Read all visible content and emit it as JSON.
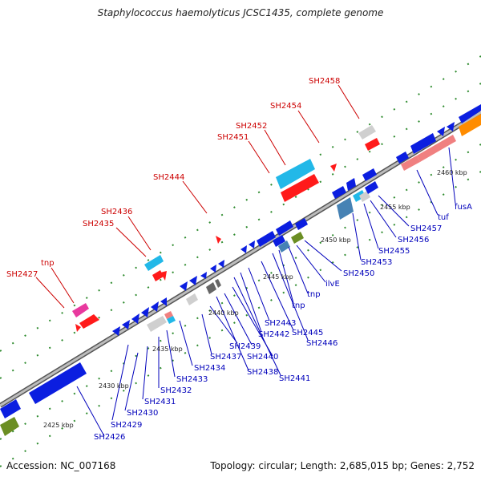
{
  "title": "Staphylococcus haemolyticus JCSC1435, complete genome",
  "footer": {
    "accession": "Accession: NC_007168",
    "topology": "Topology: circular; Length: 2,685,015 bp; Genes: 2,752"
  },
  "colors": {
    "forward_label": "#cc0000",
    "reverse_label": "#0000bb",
    "backbone": "#8a8a8a",
    "dots": "#2e8b2e"
  },
  "scale_ticks": [
    "2425 kbp",
    "2430 kbp",
    "2435 kbp",
    "2440 kbp",
    "2445 kbp",
    "2450 kbp",
    "2455 kbp",
    "2460 kbp"
  ],
  "forward_labels": [
    "SH2427",
    "tnp",
    "SH2435",
    "SH2436",
    "SH2444",
    "SH2451",
    "SH2452",
    "SH2454",
    "SH2458"
  ],
  "reverse_labels": [
    "SH2426",
    "SH2429",
    "SH2430",
    "SH2431",
    "SH2432",
    "SH2433",
    "SH2434",
    "SH2437",
    "SH2438",
    "SH2439",
    "SH2440",
    "SH2441",
    "SH2442",
    "SH2443",
    "SH2445",
    "SH2446",
    "tnp",
    "ilvE",
    "SH2450",
    "SH2453",
    "SH2455",
    "SH2456",
    "SH2457",
    "tuf",
    "fusA"
  ]
}
